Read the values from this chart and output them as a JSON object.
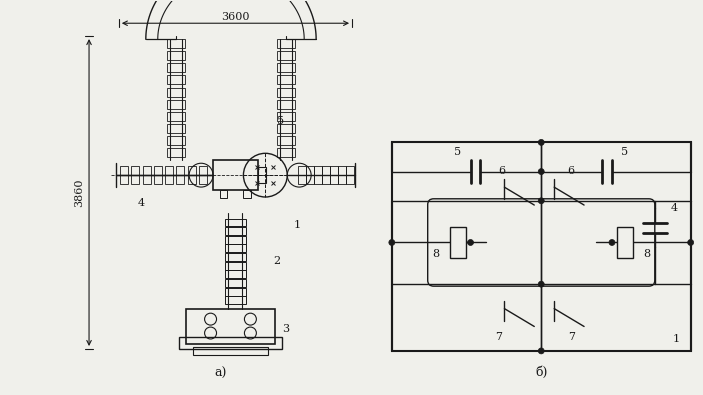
{
  "bg_color": "#f0f0eb",
  "line_color": "#1a1a1a",
  "fig_width": 7.03,
  "fig_height": 3.95,
  "label_a": "a)",
  "label_b": "б)",
  "dim_3600": "3600",
  "dim_3860": "3860"
}
